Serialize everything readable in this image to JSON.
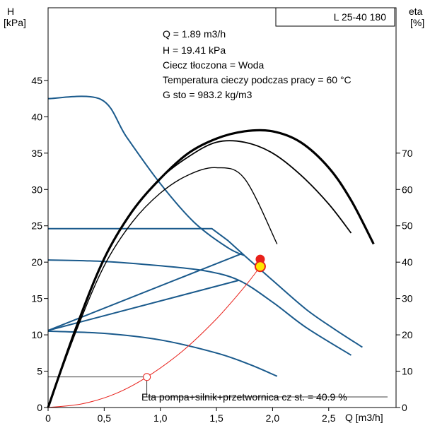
{
  "chart_data": {
    "type": "line",
    "title": "L 25-40 180",
    "left_axis_title": [
      "H",
      "[kPa]"
    ],
    "right_axis_title": [
      "eta",
      "[%]"
    ],
    "xlabel": "Q [m3/h]",
    "x_ticks": [
      "0",
      "0,5",
      "1,0",
      "1,5",
      "2,0",
      "2,5"
    ],
    "y_ticks_left": [
      "0",
      "5",
      "10",
      "15",
      "20",
      "25",
      "30",
      "35",
      "40",
      "45"
    ],
    "y_ticks_right": [
      "0",
      "10",
      "20",
      "30",
      "40",
      "50",
      "60",
      "70"
    ],
    "xlim": [
      0,
      3.1
    ],
    "ylim_left": [
      0,
      55
    ],
    "ylim_right": [
      0,
      110
    ],
    "info_lines": [
      "Q = 1.89 m3/h",
      "H = 19.41 kPa",
      "Ciecz tłoczona = Woda",
      "Temperatura cieczy podczas pracy = 60 °C",
      "G  sto    = 983.2 kg/m3"
    ],
    "eta_note": "Eta pompa+silnik+przetwornica cz  st. = 40.9 %",
    "colors": {
      "pump_curve": "#1a5a8c",
      "efficiency_curve": "#000000",
      "system_curve": "#e8201a",
      "duty_point_fill": "#ffe600",
      "duty_point_outline": "#e8201a"
    },
    "series": [
      {
        "kind": "pump-curve",
        "x": [
          0,
          0.47,
          0.7,
          1.0,
          1.3,
          1.6,
          1.75
        ],
        "y": [
          42.5,
          42.4,
          37.2,
          30.8,
          25.5,
          22.0,
          20.9
        ]
      },
      {
        "kind": "pump-curve",
        "x": [
          1.75,
          2.0,
          2.3,
          2.55,
          2.8
        ],
        "y": [
          20.9,
          17.5,
          13.5,
          10.8,
          8.3
        ]
      },
      {
        "kind": "pump-curve",
        "x": [
          0,
          1.46,
          1.6,
          1.75
        ],
        "y": [
          24.6,
          24.6,
          23.0,
          20.9
        ]
      },
      {
        "kind": "pump-curve",
        "x": [
          0,
          0.5,
          1.0,
          1.4,
          1.7,
          2.0,
          2.3,
          2.7
        ],
        "y": [
          20.3,
          20.1,
          19.5,
          18.8,
          17.5,
          14.5,
          11.0,
          7.2
        ]
      },
      {
        "kind": "pump-curve",
        "x": [
          0,
          0.5,
          1.0,
          1.5,
          1.8,
          2.04
        ],
        "y": [
          10.5,
          10.2,
          9.3,
          7.5,
          5.9,
          4.3
        ]
      },
      {
        "kind": "pump-curve",
        "x": [
          0,
          1.73
        ],
        "y": [
          10.6,
          21.2
        ]
      },
      {
        "kind": "pump-curve",
        "x": [
          0,
          1.7
        ],
        "y": [
          10.6,
          17.5
        ]
      },
      {
        "kind": "efficiency-curve",
        "x": [
          0,
          0.25,
          0.5,
          0.75,
          1.0,
          1.25,
          1.5,
          1.75,
          2.0,
          2.25,
          2.5,
          2.7,
          2.9
        ],
        "y": [
          0,
          22,
          41,
          54,
          63,
          70,
          74,
          76,
          76,
          73,
          66,
          57,
          45
        ]
      },
      {
        "kind": "efficiency-curve",
        "x": [
          0,
          0.25,
          0.5,
          0.75,
          1.0,
          1.25,
          1.5,
          1.75,
          2.0,
          2.25,
          2.5,
          2.7
        ],
        "y": [
          0,
          22,
          41,
          54,
          63,
          69,
          73,
          73,
          70,
          64,
          56,
          48
        ]
      },
      {
        "kind": "efficiency-curve",
        "x": [
          0,
          0.25,
          0.5,
          0.75,
          1.0,
          1.25,
          1.5,
          1.75,
          2.04
        ],
        "y": [
          0,
          21,
          39,
          51,
          59,
          64,
          66,
          63,
          45
        ]
      },
      {
        "kind": "system-curve",
        "x": [
          0,
          0.3,
          0.6,
          0.88,
          1.2,
          1.5,
          1.75,
          1.89
        ],
        "y": [
          0,
          0.5,
          1.9,
          4.2,
          7.8,
          12.2,
          16.6,
          19.41
        ]
      }
    ],
    "duty_point": {
      "x": 1.89,
      "y": 19.41
    },
    "max_point": {
      "x": 1.89,
      "y": 20.4
    },
    "eta_marker": {
      "x": 0.88,
      "y": 4.2
    }
  }
}
